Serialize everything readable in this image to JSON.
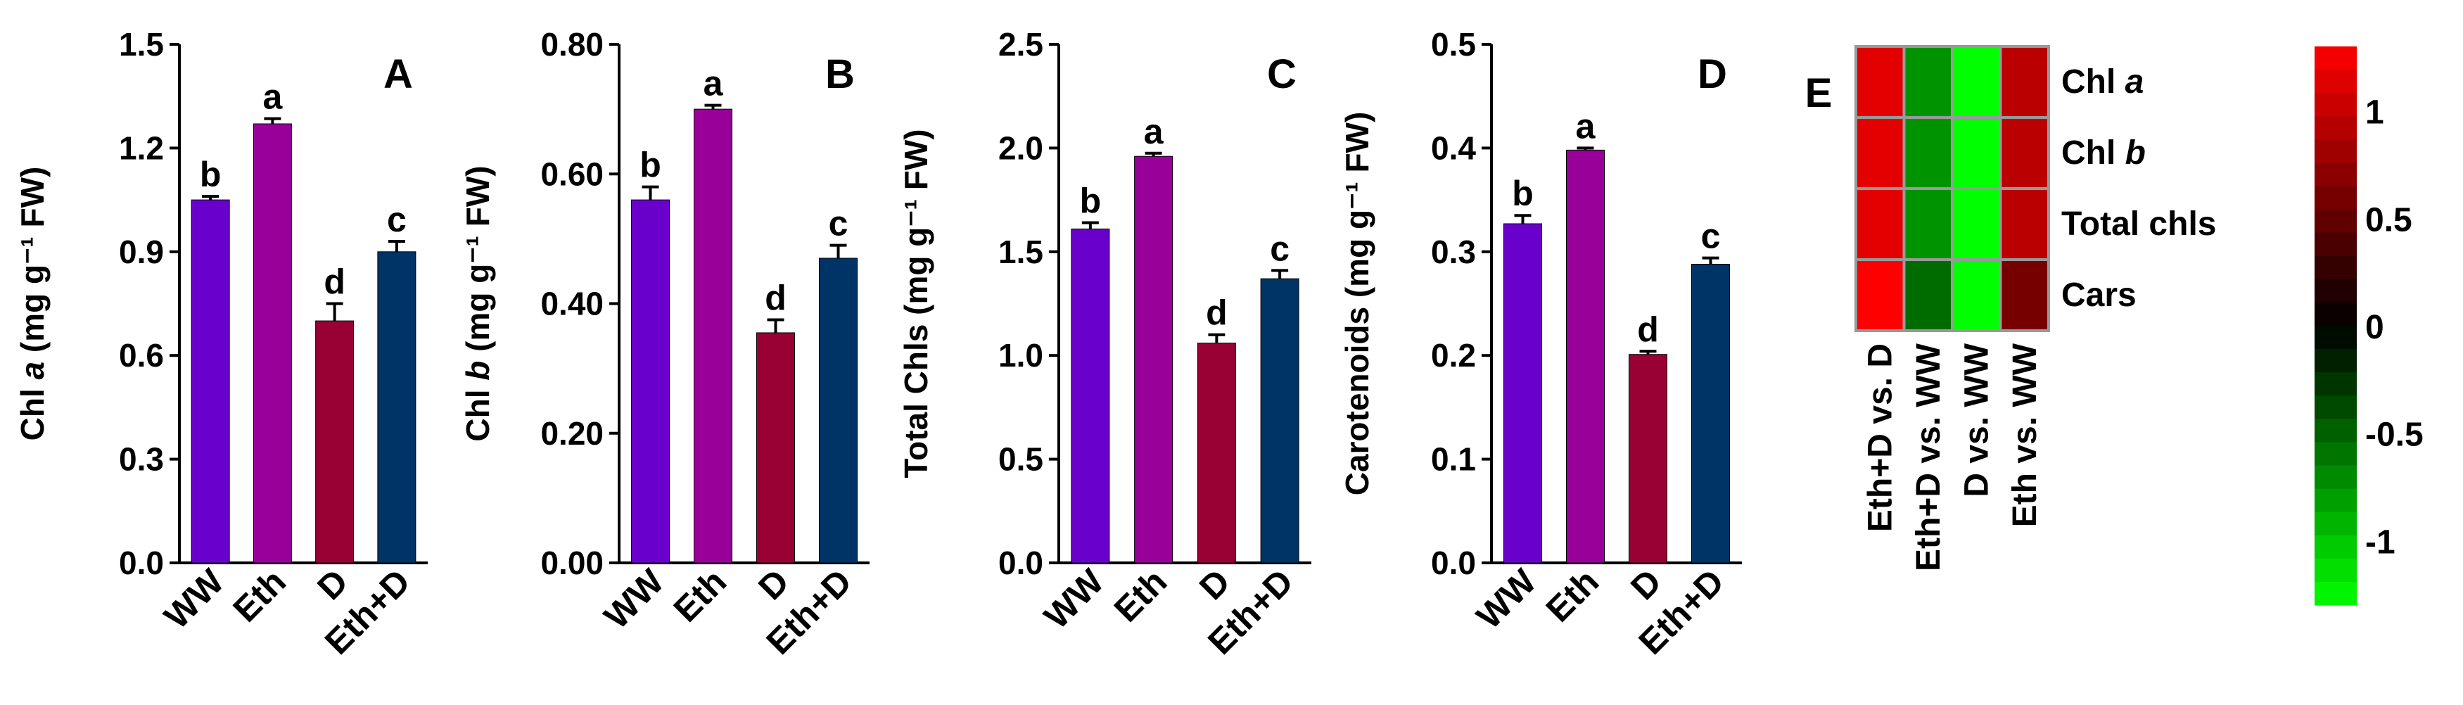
{
  "chart_data": [
    {
      "type": "bar",
      "panel": "A",
      "categories": [
        "WW",
        "Eth",
        "D",
        "Eth+D"
      ],
      "values": [
        1.05,
        1.27,
        0.7,
        0.9
      ],
      "errors": [
        0.01,
        0.015,
        0.05,
        0.03
      ],
      "letters": [
        "b",
        "a",
        "d",
        "c"
      ],
      "ylabel_pre": "Chl ",
      "ylabel_it": "a",
      "ylabel_post": " (mg g⁻¹ FW)",
      "ylim": [
        0,
        1.5
      ],
      "yticks": [
        0,
        0.3,
        0.6,
        0.9,
        1.2,
        1.5
      ],
      "yticklabels": [
        "0.0",
        "0.3",
        "0.6",
        "0.9",
        "1.2",
        "1.5"
      ]
    },
    {
      "type": "bar",
      "panel": "B",
      "categories": [
        "WW",
        "Eth",
        "D",
        "Eth+D"
      ],
      "values": [
        0.56,
        0.7,
        0.355,
        0.47
      ],
      "errors": [
        0.02,
        0.006,
        0.02,
        0.02
      ],
      "letters": [
        "b",
        "a",
        "d",
        "c"
      ],
      "ylabel_pre": "Chl ",
      "ylabel_it": "b",
      "ylabel_post": " (mg g⁻¹ FW)",
      "ylim": [
        0,
        0.8
      ],
      "yticks": [
        0,
        0.2,
        0.4,
        0.6,
        0.8
      ],
      "yticklabels": [
        "0.00",
        "0.20",
        "0.40",
        "0.60",
        "0.80"
      ]
    },
    {
      "type": "bar",
      "panel": "C",
      "categories": [
        "WW",
        "Eth",
        "D",
        "Eth+D"
      ],
      "values": [
        1.61,
        1.96,
        1.06,
        1.37
      ],
      "errors": [
        0.03,
        0.015,
        0.04,
        0.04
      ],
      "letters": [
        "b",
        "a",
        "d",
        "c"
      ],
      "ylabel_pre": "Total Chls (mg g⁻¹ FW)",
      "ylabel_it": "",
      "ylabel_post": "",
      "ylim": [
        0,
        2.5
      ],
      "yticks": [
        0,
        0.5,
        1.0,
        1.5,
        2.0,
        2.5
      ],
      "yticklabels": [
        "0.0",
        "0.5",
        "1.0",
        "1.5",
        "2.0",
        "2.5"
      ]
    },
    {
      "type": "bar",
      "panel": "D",
      "categories": [
        "WW",
        "Eth",
        "D",
        "Eth+D"
      ],
      "values": [
        0.327,
        0.398,
        0.201,
        0.288
      ],
      "errors": [
        0.008,
        0.002,
        0.003,
        0.006
      ],
      "letters": [
        "b",
        "a",
        "d",
        "c"
      ],
      "ylabel_pre": "Carotenoids (mg g⁻¹ FW)",
      "ylabel_it": "",
      "ylabel_post": "",
      "ylim": [
        0,
        0.5
      ],
      "yticks": [
        0,
        0.1,
        0.2,
        0.3,
        0.4,
        0.5
      ],
      "yticklabels": [
        "0.0",
        "0.1",
        "0.2",
        "0.3",
        "0.4",
        "0.5"
      ]
    },
    {
      "type": "heatmap",
      "panel": "E",
      "rows": [
        {
          "pre": "Chl ",
          "it": "a"
        },
        {
          "pre": "Chl ",
          "it": "b"
        },
        {
          "pre": "Total chls",
          "it": ""
        },
        {
          "pre": "Cars",
          "it": ""
        }
      ],
      "columns": [
        "Eth+D vs. D",
        "Eth+D vs. WW",
        "D vs. WW",
        "Eth vs. WW"
      ],
      "values": [
        [
          1.15,
          -0.75,
          -1.3,
          0.95
        ],
        [
          1.15,
          -0.75,
          -1.3,
          0.95
        ],
        [
          1.15,
          -0.75,
          -1.3,
          0.95
        ],
        [
          1.3,
          -0.55,
          -1.3,
          0.6
        ]
      ],
      "scale_range": [
        -1.3,
        1.3
      ],
      "scale_ticks": [
        1,
        0.5,
        0,
        -0.5,
        -1
      ],
      "scale_ticklabels": [
        "1",
        "0.5",
        "0",
        "-0.5",
        "-1"
      ]
    }
  ],
  "colors": {
    "bars": [
      "#6a00cc",
      "#990099",
      "#990033",
      "#003366"
    ],
    "axis": "#000000",
    "grid_border": "#999999"
  }
}
